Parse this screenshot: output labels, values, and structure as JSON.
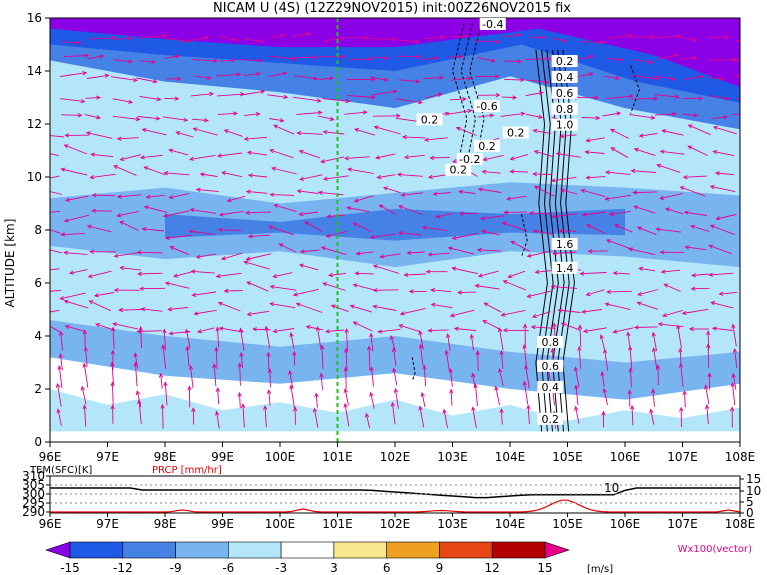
{
  "title": "NICAM U (4S)  (12Z29NOV2015)  init:00Z26NOV2015  fix",
  "chart_data": [
    {
      "type": "heatmap",
      "ylabel": "ALTITUDE [km]",
      "xticks": [
        "96E",
        "97E",
        "98E",
        "99E",
        "100E",
        "101E",
        "102E",
        "103E",
        "104E",
        "105E",
        "106E",
        "107E",
        "108E"
      ],
      "x_range": [
        96,
        108
      ],
      "yticks": [
        "0",
        "2",
        "4",
        "6",
        "8",
        "10",
        "12",
        "14",
        "16"
      ],
      "y_range": [
        0,
        16
      ],
      "marker_longitude": 101,
      "contour_labels": [
        "-0.4",
        "0.2",
        "-0.6",
        "0.2",
        "0.2",
        "-0.2",
        "0.2",
        "0.2",
        "0.4",
        "0.6",
        "0.8",
        "1.0",
        "1.6",
        "1.4",
        "0.8",
        "0.6",
        "0.4",
        "0.2"
      ],
      "colorbar": {
        "levels": [
          "-15",
          "-12",
          "-9",
          "-6",
          "-3",
          "3",
          "6",
          "9",
          "12",
          "15"
        ],
        "colors": [
          "#8c00e6",
          "#1e5ae6",
          "#4682e6",
          "#78b4f0",
          "#b4e6fa",
          "#ffffff",
          "#fae68c",
          "#f0a020",
          "#e64614",
          "#b40000",
          "#e6008c"
        ],
        "unit": "[m/s]"
      },
      "vector_label": "Wx100(vector)"
    },
    {
      "type": "line",
      "series": [
        {
          "name": "TEM(SFC)[K]",
          "color": "#000000"
        },
        {
          "name": "PRCP [mm/hr]",
          "color": "#e60000"
        }
      ],
      "left_ticks": [
        "310",
        "305",
        "300",
        "295",
        "290"
      ],
      "right_ticks": [
        "15",
        "10",
        "5",
        "0"
      ],
      "xticks": [
        "96E",
        "97E",
        "98E",
        "99E",
        "100E",
        "101E",
        "102E",
        "103E",
        "104E",
        "105E",
        "106E",
        "107E",
        "108E"
      ],
      "annotation": "10"
    }
  ]
}
